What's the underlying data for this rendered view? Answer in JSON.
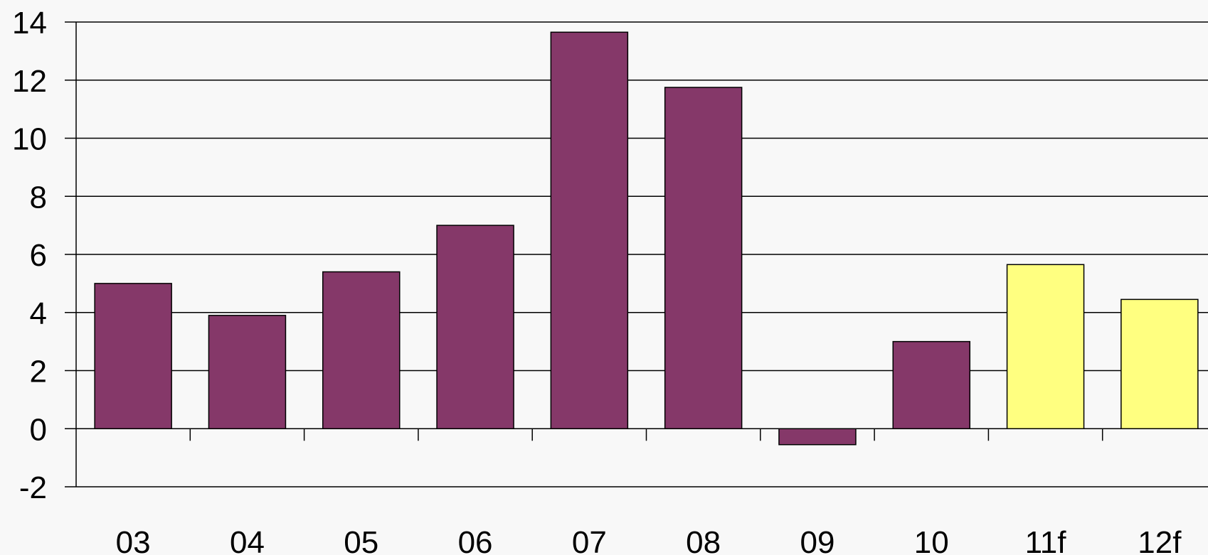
{
  "chart_data": {
    "type": "bar",
    "title": "",
    "xlabel": "",
    "ylabel": "",
    "categories": [
      "03",
      "04",
      "05",
      "06",
      "07",
      "08",
      "09",
      "10",
      "11f",
      "12f"
    ],
    "values": [
      5.0,
      3.9,
      5.4,
      7.0,
      13.65,
      11.75,
      -0.55,
      3.0,
      5.65,
      4.45
    ],
    "forecast": [
      false,
      false,
      false,
      false,
      false,
      false,
      false,
      false,
      true,
      true
    ],
    "ylim": [
      -2,
      14
    ],
    "yticks": [
      -2,
      0,
      2,
      4,
      6,
      8,
      10,
      12,
      14
    ],
    "grid": true,
    "colors": {
      "actual": "#853869",
      "forecast": "#ffff80",
      "outline": "#000000",
      "background": "#f8f8f8"
    }
  }
}
